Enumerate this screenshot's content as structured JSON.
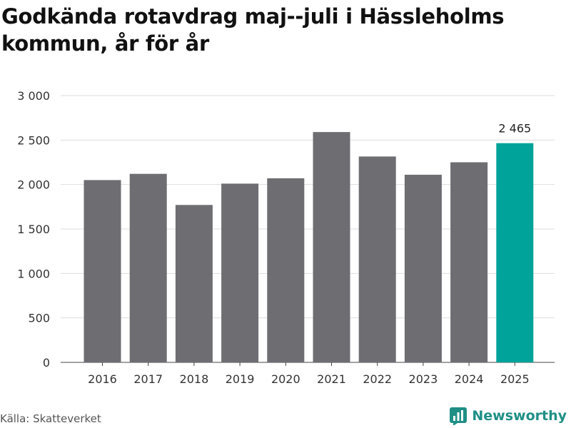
{
  "title": "Godkända rotavdrag maj--juli i Hässleholms kommun, år för år",
  "source": "Källa: Skatteverket",
  "brand": {
    "name": "Newsworthy",
    "icon": "bar-chart-icon",
    "color": "#1f8f86"
  },
  "colors": {
    "bar": "#6d6d72",
    "highlight": "#00a39a",
    "grid": "#dddddd"
  },
  "chart_data": {
    "type": "bar",
    "categories": [
      "2016",
      "2017",
      "2018",
      "2019",
      "2020",
      "2021",
      "2022",
      "2023",
      "2024",
      "2025"
    ],
    "values": [
      2050,
      2120,
      1770,
      2010,
      2070,
      2590,
      2315,
      2110,
      2250,
      2465
    ],
    "highlight_index": 9,
    "data_labels": [
      {
        "index": 9,
        "text": "2 465"
      }
    ],
    "yticks": [
      0,
      500,
      1000,
      1500,
      2000,
      2500,
      3000
    ],
    "ytick_labels": [
      "0",
      "500",
      "1 000",
      "1 500",
      "2 000",
      "2 500",
      "3 000"
    ],
    "ylim": [
      0,
      3000
    ],
    "xlabel": "",
    "ylabel": "",
    "grid": true,
    "legend": "none"
  }
}
